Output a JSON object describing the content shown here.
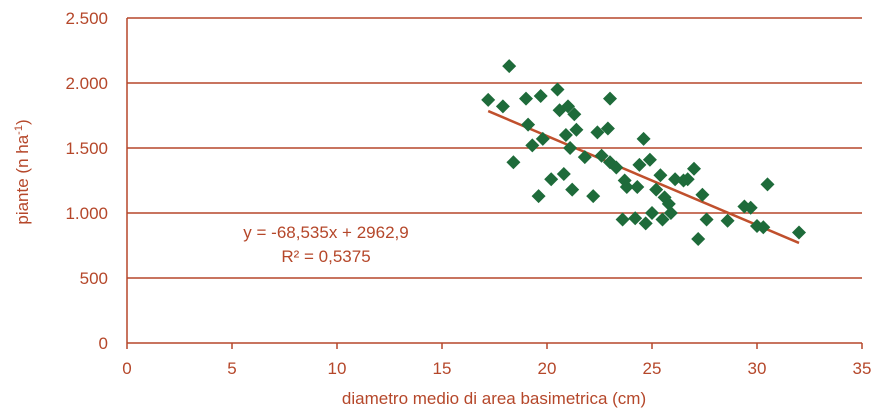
{
  "chart_data": {
    "type": "scatter",
    "title": "",
    "xlabel": "diametro medio di area basimetrica (cm)",
    "ylabel_main": "piante (n ha",
    "ylabel_sup": "-1",
    "ylabel_end": ")",
    "xlim": [
      0,
      35
    ],
    "ylim": [
      0,
      2500
    ],
    "x_ticks": [
      {
        "value": 0,
        "label": "0"
      },
      {
        "value": 5,
        "label": "5"
      },
      {
        "value": 10,
        "label": "10"
      },
      {
        "value": 15,
        "label": "15"
      },
      {
        "value": 20,
        "label": "20"
      },
      {
        "value": 25,
        "label": "25"
      },
      {
        "value": 30,
        "label": "30"
      },
      {
        "value": 35,
        "label": "35"
      }
    ],
    "y_ticks": [
      {
        "value": 0,
        "label": "0"
      },
      {
        "value": 500,
        "label": "500"
      },
      {
        "value": 1000,
        "label": "1.000"
      },
      {
        "value": 1500,
        "label": "1.500"
      },
      {
        "value": 2000,
        "label": "2.000"
      },
      {
        "value": 2500,
        "label": "2.500"
      }
    ],
    "grid": "horizontal",
    "legend": "none",
    "colors": {
      "points": "#1e6b3a",
      "trend": "#c0502d",
      "axis": "#b5472a",
      "grid": "#b5472a"
    },
    "points": [
      [
        17.2,
        1870
      ],
      [
        17.9,
        1820
      ],
      [
        18.2,
        2130
      ],
      [
        18.4,
        1390
      ],
      [
        19.0,
        1880
      ],
      [
        19.1,
        1680
      ],
      [
        19.3,
        1520
      ],
      [
        19.6,
        1130
      ],
      [
        19.7,
        1900
      ],
      [
        19.8,
        1570
      ],
      [
        20.2,
        1260
      ],
      [
        20.5,
        1950
      ],
      [
        20.6,
        1790
      ],
      [
        20.8,
        1300
      ],
      [
        20.9,
        1600
      ],
      [
        21.0,
        1820
      ],
      [
        21.1,
        1500
      ],
      [
        21.2,
        1180
      ],
      [
        21.3,
        1760
      ],
      [
        21.4,
        1640
      ],
      [
        21.8,
        1430
      ],
      [
        22.2,
        1130
      ],
      [
        22.4,
        1620
      ],
      [
        22.6,
        1440
      ],
      [
        22.9,
        1650
      ],
      [
        23.0,
        1880
      ],
      [
        23.0,
        1390
      ],
      [
        23.3,
        1350
      ],
      [
        23.6,
        950
      ],
      [
        23.7,
        1250
      ],
      [
        23.8,
        1200
      ],
      [
        24.2,
        960
      ],
      [
        24.3,
        1200
      ],
      [
        24.4,
        1370
      ],
      [
        24.6,
        1570
      ],
      [
        24.7,
        920
      ],
      [
        24.9,
        1410
      ],
      [
        25.0,
        1000
      ],
      [
        25.2,
        1180
      ],
      [
        25.4,
        1290
      ],
      [
        25.5,
        950
      ],
      [
        25.6,
        1120
      ],
      [
        25.8,
        1070
      ],
      [
        25.9,
        1000
      ],
      [
        26.1,
        1260
      ],
      [
        26.5,
        1250
      ],
      [
        26.7,
        1260
      ],
      [
        27.0,
        1340
      ],
      [
        27.2,
        800
      ],
      [
        27.4,
        1140
      ],
      [
        27.6,
        950
      ],
      [
        28.6,
        940
      ],
      [
        29.4,
        1050
      ],
      [
        29.7,
        1040
      ],
      [
        30.0,
        900
      ],
      [
        30.3,
        890
      ],
      [
        30.5,
        1220
      ],
      [
        32.0,
        850
      ]
    ],
    "trendline": {
      "slope": -68.535,
      "intercept": 2962.9,
      "x_range": [
        17.2,
        32.0
      ]
    },
    "annotations": {
      "equation": "y = -68,535x + 2962,9",
      "r2": "R² = 0,5375"
    }
  }
}
